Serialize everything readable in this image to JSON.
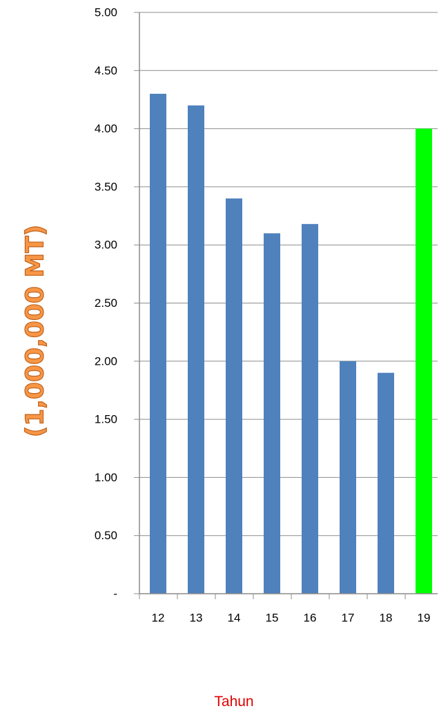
{
  "chart_data": {
    "type": "bar",
    "title": "",
    "xlabel": "Tahun",
    "ylabel": "(1,000,000 MT)",
    "categories": [
      "12",
      "13",
      "14",
      "15",
      "16",
      "17",
      "18",
      "19"
    ],
    "values": [
      4.3,
      4.2,
      3.4,
      3.1,
      3.18,
      2.0,
      1.9,
      4.0
    ],
    "bar_colors": [
      "#4f81bd",
      "#4f81bd",
      "#4f81bd",
      "#4f81bd",
      "#4f81bd",
      "#4f81bd",
      "#4f81bd",
      "#00ff00"
    ],
    "ylim": [
      0,
      5
    ],
    "yticks": [
      0,
      0.5,
      1.0,
      1.5,
      2.0,
      2.5,
      3.0,
      3.5,
      4.0,
      4.5,
      5.0
    ],
    "ytick_labels": [
      "-",
      "0.50",
      "1.00",
      "1.50",
      "2.00",
      "2.50",
      "3.00",
      "3.50",
      "4.00",
      "4.50",
      "5.00"
    ],
    "grid": true,
    "legend": "none"
  },
  "colors": {
    "xlabel": "#e00000",
    "ylabel_fill": "#f79646",
    "ylabel_outline": "#c0621a",
    "gridline": "#8c8c8c",
    "axis": "#8c8c8c"
  }
}
